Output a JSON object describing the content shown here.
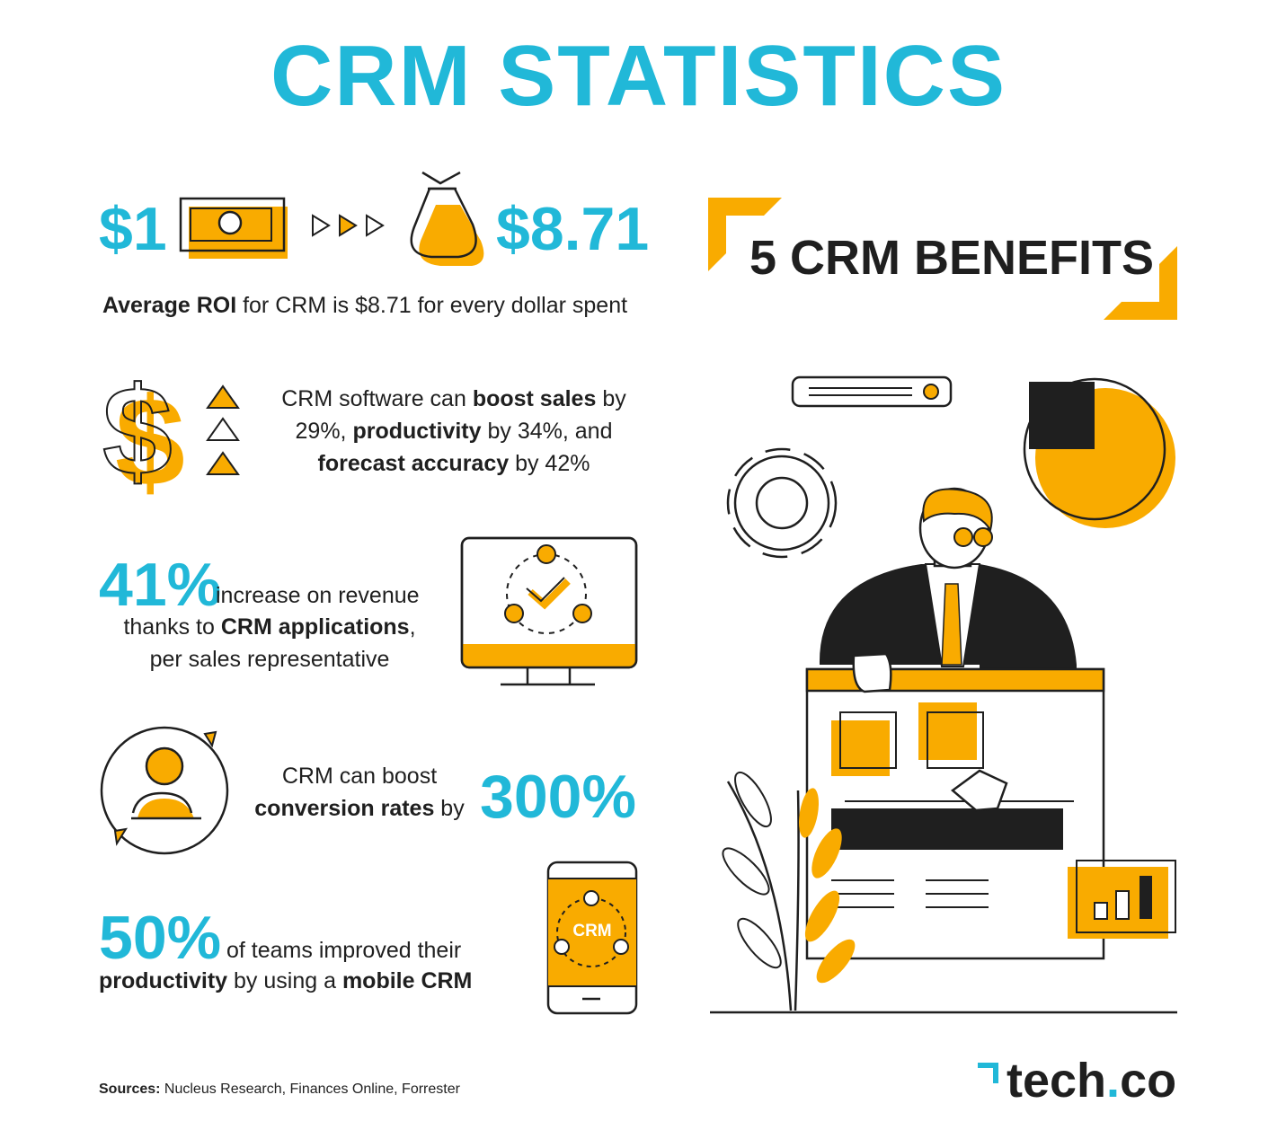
{
  "title": "CRM STATISTICS",
  "colors": {
    "cyan": "#21b8d8",
    "orange": "#f9ab00",
    "dark": "#1f1f1f"
  },
  "roi": {
    "from": "$1",
    "to": "$8.71",
    "caption_bold": "Average ROI",
    "caption_rest": " for CRM is $8.71 for every dollar spent",
    "icons": [
      "cash-icon",
      "arrows-icon",
      "money-bag-icon"
    ]
  },
  "boost": {
    "t1": "CRM software can ",
    "b1": "boost sales",
    "t2": " by",
    "t3": "29%, ",
    "b2": "productivity",
    "t4": " by 34%, and",
    "b3": "forecast accuracy",
    "t5": " by 42%"
  },
  "revenue": {
    "stat": "41%",
    "t1": " increase on revenue",
    "t2": "thanks to ",
    "b1": "CRM applications",
    "t3": ",",
    "t4": "per sales representative"
  },
  "conversion": {
    "t1": "CRM can boost",
    "b1": "conversion rates",
    "t2": " by",
    "stat": "300%"
  },
  "mobile": {
    "stat": "50%",
    "t1": " of teams improved their",
    "b1": "productivity",
    "t2": " by using a ",
    "b2": "mobile CRM",
    "phone_label": "CRM"
  },
  "benefits": {
    "heading": "5 CRM BENEFITS"
  },
  "sources": {
    "label": "Sources:",
    "text": " Nucleus Research, Finances Online, Forrester"
  },
  "brand": {
    "name": "tech",
    "dot": ".",
    "suffix": "co"
  }
}
